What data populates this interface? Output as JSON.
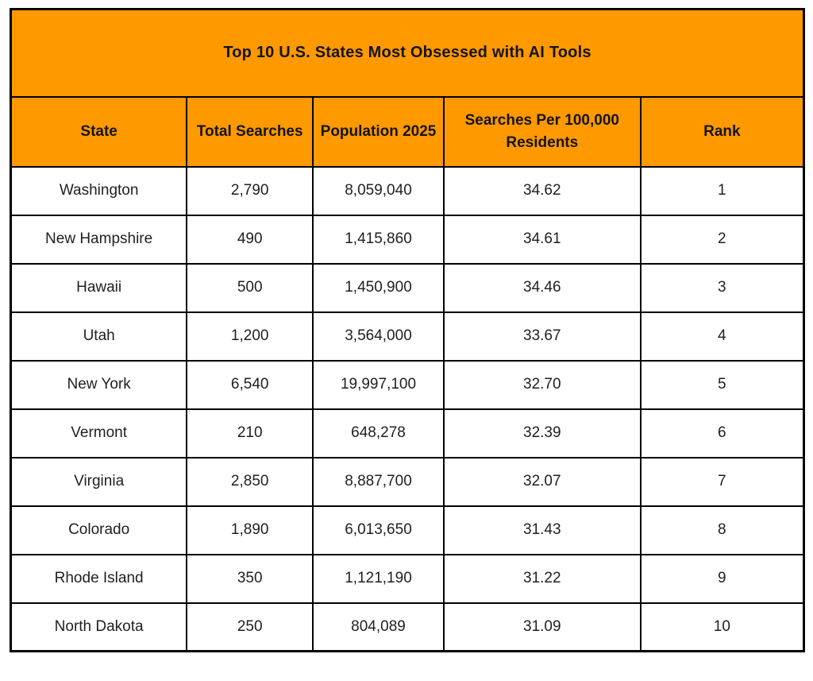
{
  "table": {
    "title": "Top 10 U.S. States Most Obsessed with AI Tools",
    "columns": [
      "State",
      "Total Searches",
      "Population 2025",
      "Searches Per 100,000 Residents",
      "Rank"
    ],
    "rows": [
      {
        "state": "Washington",
        "total_searches": "2,790",
        "population": "8,059,040",
        "per_100k": "34.62",
        "rank": "1"
      },
      {
        "state": "New Hampshire",
        "total_searches": "490",
        "population": "1,415,860",
        "per_100k": "34.61",
        "rank": "2"
      },
      {
        "state": "Hawaii",
        "total_searches": "500",
        "population": "1,450,900",
        "per_100k": "34.46",
        "rank": "3"
      },
      {
        "state": "Utah",
        "total_searches": "1,200",
        "population": "3,564,000",
        "per_100k": "33.67",
        "rank": "4"
      },
      {
        "state": "New York",
        "total_searches": "6,540",
        "population": "19,997,100",
        "per_100k": "32.70",
        "rank": "5"
      },
      {
        "state": "Vermont",
        "total_searches": "210",
        "population": "648,278",
        "per_100k": "32.39",
        "rank": "6"
      },
      {
        "state": "Virginia",
        "total_searches": "2,850",
        "population": "8,887,700",
        "per_100k": "32.07",
        "rank": "7"
      },
      {
        "state": "Colorado",
        "total_searches": "1,890",
        "population": "6,013,650",
        "per_100k": "31.43",
        "rank": "8"
      },
      {
        "state": "Rhode Island",
        "total_searches": "350",
        "population": "1,121,190",
        "per_100k": "31.22",
        "rank": "9"
      },
      {
        "state": "North Dakota",
        "total_searches": "250",
        "population": "804,089",
        "per_100k": "31.09",
        "rank": "10"
      }
    ]
  },
  "chart_data": {
    "type": "table",
    "title": "Top 10 U.S. States Most Obsessed with AI Tools",
    "columns": [
      "State",
      "Total Searches",
      "Population 2025",
      "Searches Per 100,000 Residents",
      "Rank"
    ],
    "rows": [
      [
        "Washington",
        2790,
        8059040,
        34.62,
        1
      ],
      [
        "New Hampshire",
        490,
        1415860,
        34.61,
        2
      ],
      [
        "Hawaii",
        500,
        1450900,
        34.46,
        3
      ],
      [
        "Utah",
        1200,
        3564000,
        33.67,
        4
      ],
      [
        "New York",
        6540,
        19997100,
        32.7,
        5
      ],
      [
        "Vermont",
        210,
        648278,
        32.39,
        6
      ],
      [
        "Virginia",
        2850,
        8887700,
        32.07,
        7
      ],
      [
        "Colorado",
        1890,
        6013650,
        31.43,
        8
      ],
      [
        "Rhode Island",
        350,
        1121190,
        31.22,
        9
      ],
      [
        "North Dakota",
        250,
        804089,
        31.09,
        10
      ]
    ]
  },
  "colors": {
    "header_bg": "#FF9900",
    "border": "#000000",
    "row_bg": "#FFFFFF",
    "title_text": "#141414",
    "cell_text": "#1F1F1F"
  }
}
